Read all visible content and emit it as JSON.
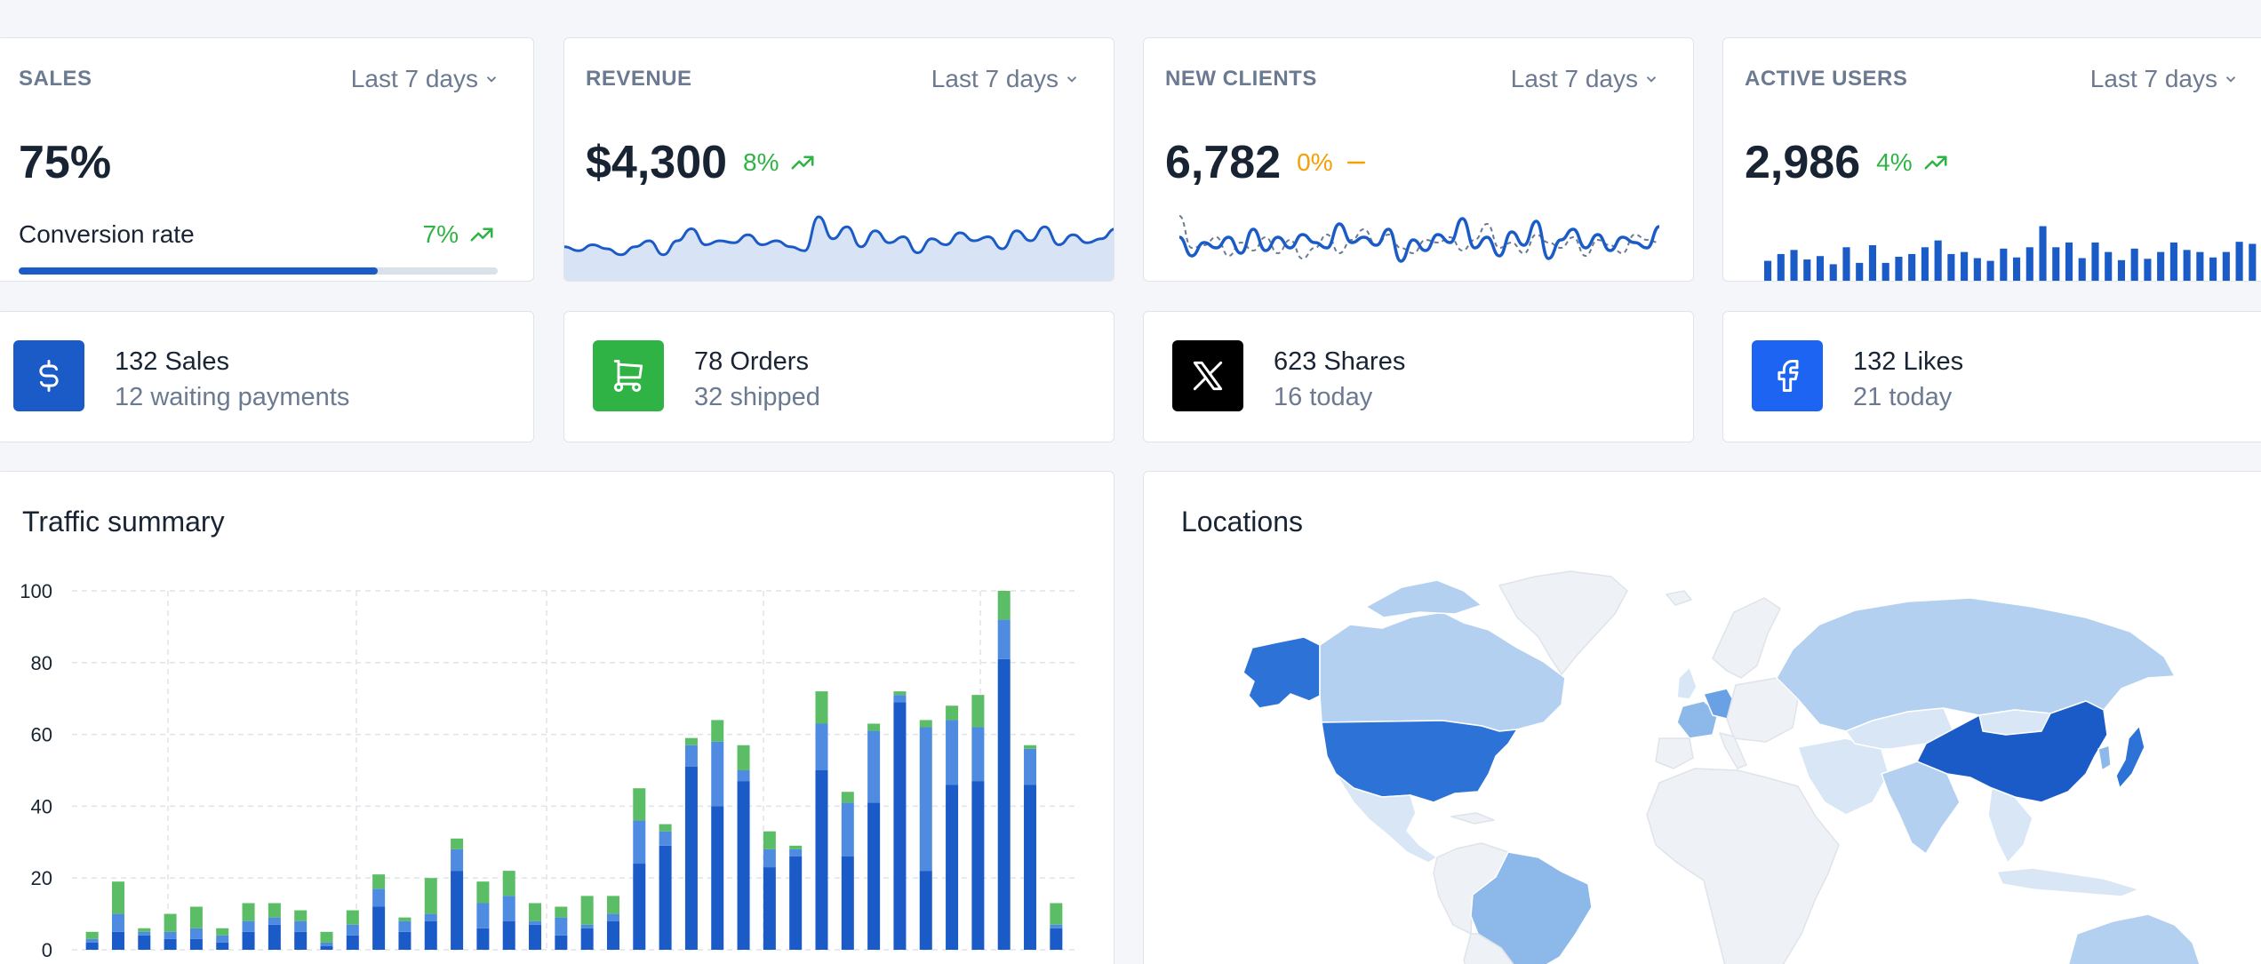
{
  "kpis": [
    {
      "subheader": "SALES",
      "period": "Last 7 days",
      "value": "75%",
      "conversion_label": "Conversion rate",
      "conversion_change": "7%",
      "progress": 0.75
    },
    {
      "subheader": "REVENUE",
      "period": "Last 7 days",
      "value": "$4,300",
      "change": "8%",
      "change_color": "#2fb344"
    },
    {
      "subheader": "NEW CLIENTS",
      "period": "Last 7 days",
      "value": "6,782",
      "change": "0%",
      "change_color": "#f59f00"
    },
    {
      "subheader": "ACTIVE USERS",
      "period": "Last 7 days",
      "value": "2,986",
      "change": "4%",
      "change_color": "#2fb344"
    }
  ],
  "stats": [
    {
      "icon": "dollar-icon",
      "color": "#1a5bc7",
      "main": "132 Sales",
      "secondary": "12 waiting payments"
    },
    {
      "icon": "cart-icon",
      "color": "#2fb344",
      "main": "78 Orders",
      "secondary": "32 shipped"
    },
    {
      "icon": "x-twitter-icon",
      "color": "#000000",
      "main": "623 Shares",
      "secondary": "16 today"
    },
    {
      "icon": "facebook-icon",
      "color": "#1d64f2",
      "main": "132 Likes",
      "secondary": "21 today"
    }
  ],
  "traffic": {
    "title": "Traffic summary"
  },
  "locations": {
    "title": "Locations"
  },
  "colors": {
    "primary": "#1a5bc7",
    "secondary": "#4f8be0",
    "tertiary": "#5bbd65",
    "sparkline_fill": "#d8e4f6"
  },
  "sparklines": {
    "revenue": [
      37,
      35,
      38,
      36,
      33,
      37,
      40,
      33,
      40,
      46,
      38,
      40,
      39,
      43,
      38,
      40,
      37,
      35,
      52,
      41,
      47,
      37,
      45,
      39,
      42,
      34,
      41,
      38,
      44,
      40,
      42,
      36,
      45,
      40,
      47,
      38,
      43,
      39,
      41,
      46
    ],
    "new_clients": [
      37,
      30,
      35,
      33,
      37,
      31,
      40,
      32,
      37,
      33,
      38,
      35,
      33,
      42,
      35,
      37,
      34,
      40,
      28,
      36,
      32,
      38,
      35,
      44,
      33,
      37,
      30,
      39,
      34,
      43,
      29,
      36,
      40,
      33,
      38,
      32,
      37,
      35,
      33,
      41
    ],
    "new_clients_compare": [
      45,
      33,
      34,
      37,
      30,
      35,
      32,
      37,
      31,
      36,
      29,
      33,
      38,
      31,
      36,
      40,
      34,
      38,
      33,
      31,
      36,
      35,
      37,
      32,
      36,
      42,
      33,
      35,
      31,
      38,
      35,
      33,
      37,
      30,
      36,
      34,
      31,
      38,
      36,
      35
    ],
    "active_users": [
      45,
      55,
      61,
      47,
      52,
      40,
      65,
      42,
      68,
      42,
      51,
      55,
      65,
      75,
      55,
      58,
      49,
      45,
      63,
      50,
      65,
      96,
      65,
      72,
      49,
      72,
      58,
      46,
      63,
      48,
      58,
      72,
      61,
      58,
      50,
      58,
      73,
      70
    ]
  },
  "chart_data": {
    "type": "bar",
    "stacked": true,
    "title": "Traffic summary",
    "ylim": [
      0,
      100
    ],
    "yticks": [
      0,
      20,
      40,
      60,
      80,
      100
    ],
    "grid": true,
    "series": [
      {
        "values": [
          2,
          5,
          4,
          3,
          3,
          2,
          5,
          7,
          5,
          1,
          4,
          12,
          5,
          8,
          22,
          6,
          8,
          7,
          4,
          6,
          8,
          24,
          29,
          51,
          40,
          47,
          23,
          26,
          50,
          26,
          41,
          69,
          22,
          46,
          47,
          81,
          46,
          6
        ]
      },
      {
        "values": [
          1,
          5,
          1,
          2,
          3,
          2,
          3,
          2,
          3,
          1,
          3,
          5,
          3,
          2,
          6,
          7,
          7,
          1,
          5,
          1,
          2,
          12,
          4,
          6,
          18,
          3,
          5,
          2,
          13,
          15,
          20,
          2,
          40,
          18,
          15,
          11,
          10,
          1
        ]
      },
      {
        "values": [
          2,
          9,
          1,
          5,
          6,
          2,
          5,
          4,
          3,
          3,
          4,
          4,
          1,
          10,
          3,
          6,
          7,
          5,
          3,
          8,
          5,
          9,
          2,
          2,
          6,
          7,
          5,
          1,
          9,
          3,
          2,
          1,
          2,
          4,
          9,
          8,
          1,
          6
        ]
      }
    ]
  },
  "map_data": {
    "countries": [
      {
        "name": "United States",
        "shade": "mid"
      },
      {
        "name": "Canada",
        "shade": "light"
      },
      {
        "name": "Alaska",
        "shade": "mid"
      },
      {
        "name": "Brazil",
        "shade": "soft"
      },
      {
        "name": "China",
        "shade": "dark"
      },
      {
        "name": "Japan",
        "shade": "mid"
      },
      {
        "name": "Russia",
        "shade": "light"
      },
      {
        "name": "India",
        "shade": "light"
      },
      {
        "name": "Australia",
        "shade": "light"
      },
      {
        "name": "Germany",
        "shade": "soft"
      },
      {
        "name": "France",
        "shade": "soft"
      }
    ]
  }
}
